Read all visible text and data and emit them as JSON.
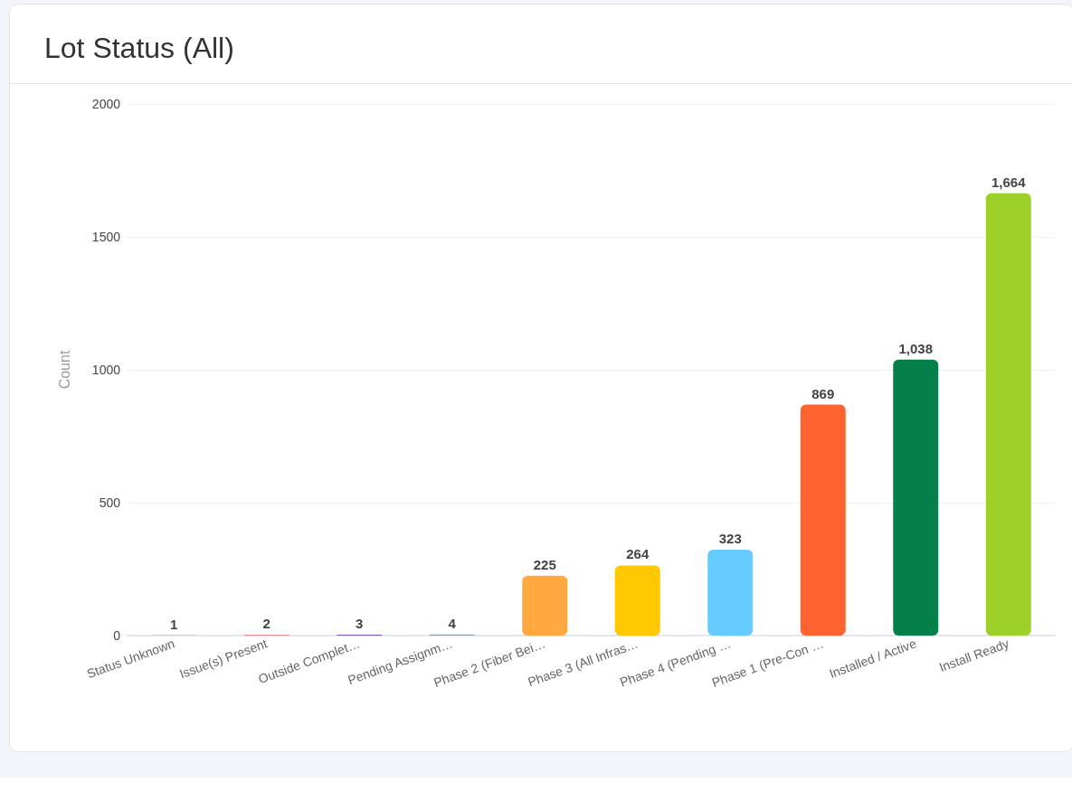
{
  "chart_data": {
    "type": "bar",
    "title": "Lot Status (All)",
    "ylabel": "Count",
    "categories": [
      "Status Unknown",
      "Issue(s) Present",
      "Outside Complet…",
      "Pending Assignm…",
      "Phase 2 (Fiber Bei…",
      "Phase 3 (All Infras…",
      "Phase 4 (Pending …",
      "Phase 1 (Pre-Con …",
      "Installed / Active",
      "Install Ready"
    ],
    "values": [
      1,
      2,
      3,
      4,
      225,
      264,
      323,
      869,
      1038,
      1664
    ],
    "colors": [
      "#9e9e9e",
      "#e53935",
      "#7e57c2",
      "#90a4ae",
      "#ffa940",
      "#ffc800",
      "#66ccff",
      "#ff6430",
      "#05804a",
      "#9dd12a"
    ],
    "value_labels": [
      "1",
      "2",
      "3",
      "4",
      "225",
      "264",
      "323",
      "869",
      "1,038",
      "1,664"
    ],
    "ylim": [
      0,
      2000
    ],
    "yticks": [
      0,
      500,
      1000,
      1500,
      2000
    ],
    "grid": "y"
  }
}
